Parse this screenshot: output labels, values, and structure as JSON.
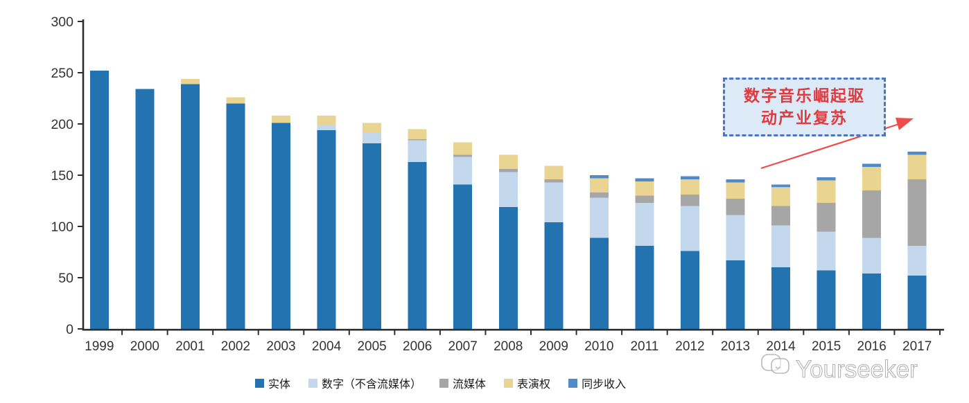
{
  "page": {
    "background": "#ffffff"
  },
  "chart_data": {
    "type": "bar",
    "stacked": true,
    "title": "",
    "xlabel": "",
    "ylabel": "",
    "grid": false,
    "legend_position": "bottom",
    "ylim": [
      0,
      300
    ],
    "yticks": [
      0,
      50,
      100,
      150,
      200,
      250,
      300
    ],
    "categories": [
      "1999",
      "2000",
      "2001",
      "2002",
      "2003",
      "2004",
      "2005",
      "2006",
      "2007",
      "2008",
      "2009",
      "2010",
      "2011",
      "2012",
      "2013",
      "2014",
      "2015",
      "2016",
      "2017"
    ],
    "series": [
      {
        "name": "实体",
        "color": "#2273B0",
        "values": [
          252,
          234,
          239,
          220,
          201,
          194,
          181,
          163,
          141,
          119,
          104,
          89,
          81,
          76,
          67,
          60,
          57,
          54,
          52
        ]
      },
      {
        "name": "数字（不含流媒体）",
        "color": "#C3D7ED",
        "values": [
          0,
          0,
          0,
          0,
          0,
          5,
          11,
          21,
          27,
          34,
          39,
          39,
          42,
          44,
          44,
          41,
          38,
          35,
          29
        ]
      },
      {
        "name": "流媒体",
        "color": "#A6A6A6",
        "values": [
          0,
          0,
          0,
          0,
          0,
          0,
          0,
          1,
          2,
          3,
          3,
          5,
          7,
          11,
          16,
          19,
          28,
          46,
          65
        ]
      },
      {
        "name": "表演权",
        "color": "#E9D491",
        "values": [
          0,
          0,
          5,
          6,
          7,
          9,
          9,
          10,
          12,
          14,
          13,
          14,
          14,
          15,
          16,
          18,
          22,
          23,
          24
        ]
      },
      {
        "name": "同步收入",
        "color": "#4E8BC8",
        "values": [
          0,
          0,
          0,
          0,
          0,
          0,
          0,
          0,
          0,
          0,
          0,
          3,
          3,
          3,
          3,
          3,
          3,
          3,
          3
        ]
      }
    ],
    "axis_color": "#2e2e2e",
    "tick_label_color": "#333333"
  },
  "annotation": {
    "line1": "数字音乐崛起驱",
    "line2": "动产业复苏",
    "text_color": "#E0393E",
    "border_color": "#4D74C0",
    "fill_color": "#DCE9F7",
    "arrow_color": "#EF4B4B"
  },
  "watermark": {
    "text": "Yourseeker",
    "logo": "chat-bubbles-logo",
    "color": "#B8B8B8"
  }
}
